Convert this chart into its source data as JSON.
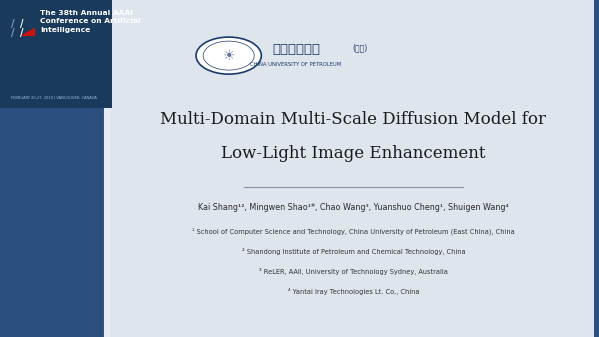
{
  "bg_color": "#2b5080",
  "main_bg": "#e8ecf2",
  "title_line1": "Multi-Domain Multi-Scale Diffusion Model for",
  "title_line2": "Low-Light Image Enhancement",
  "authors": "Kai Shang¹², Mingwen Shao¹*, Chao Wang³, Yuanshuo Cheng¹, Shuigen Wang⁴",
  "affil1": "¹ School of Computer Science and Technology, China University of Petroleum (East China), China",
  "affil2": "² Shandong Institute of Petroleum and Chemical Technology, China",
  "affil3": "³ ReLER, AAII, University of Technology Sydney, Australia",
  "affil4": "⁴ Yantai Iray Technologies Lt. Co., China",
  "aaai_title": "The 38th Annual AAAI\nConference on Artificial\nIntelligence",
  "aaai_date": "FEBRUARY 20-27, 2024 | VANCOUVER, CANADA",
  "aaai_bg": "#1a3a5c",
  "aaai_text_color": "#ffffff",
  "title_color": "#1a1a1a",
  "author_color": "#2a2a2a",
  "affil_color": "#333333",
  "univ_name": "中国石油大学",
  "univ_sub": "(华东)",
  "univ_eng": "CHINA UNIVERSITY OF PETROLEUM",
  "separator_color": "#555577"
}
